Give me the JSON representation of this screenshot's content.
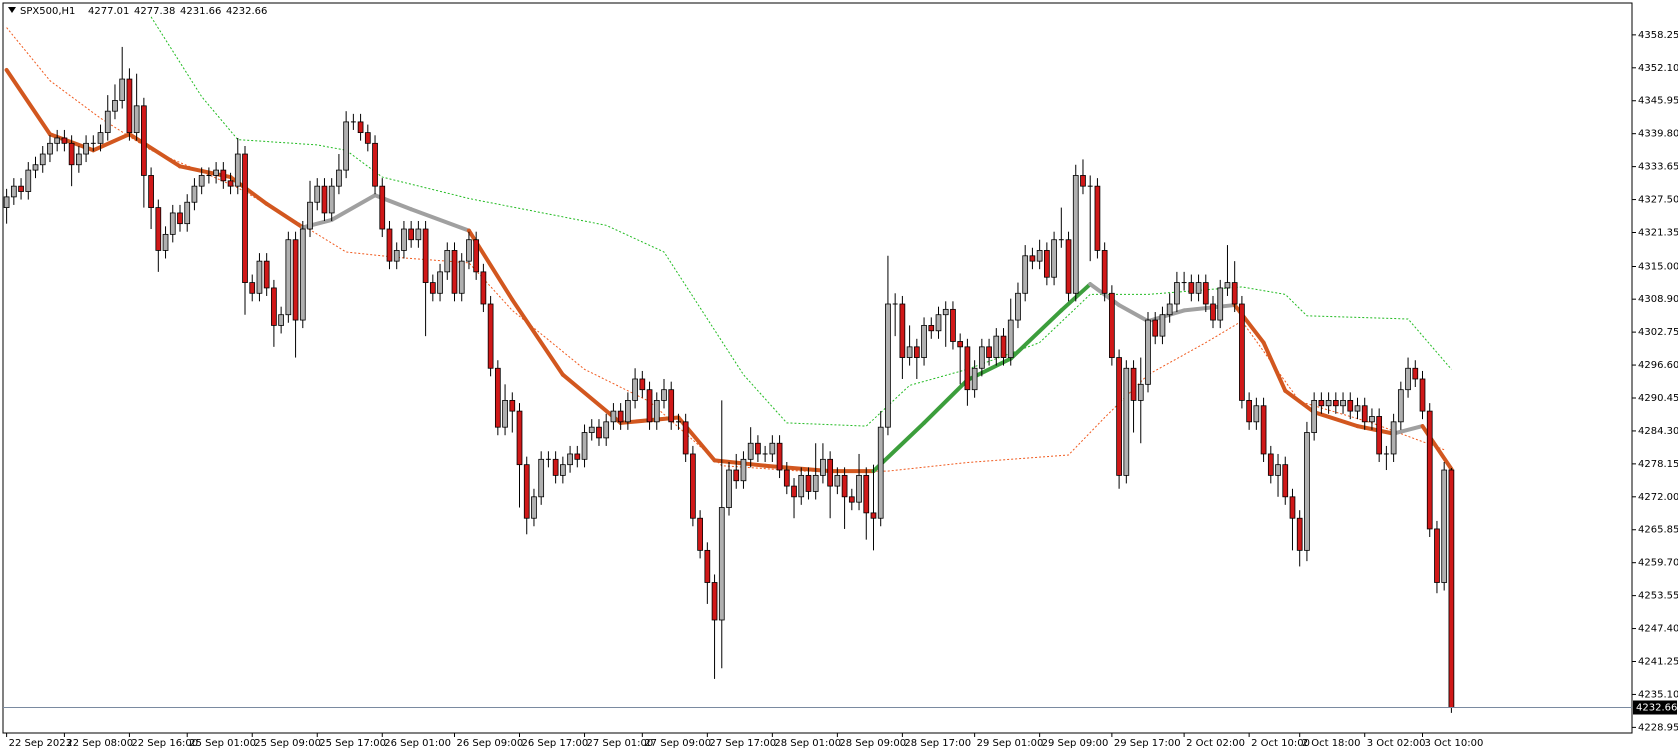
{
  "chart_data": {
    "type": "candlestick",
    "symbol": "SPX500,H1",
    "open": [
      4326,
      4328,
      4330,
      4329,
      4333,
      4334,
      4336,
      4338,
      4339,
      4338,
      4334,
      4336,
      4338,
      4338,
      4340,
      4344,
      4346,
      4350,
      4340,
      4345,
      4332,
      4326,
      4318,
      4321,
      4325,
      4323,
      4327,
      4330,
      4332,
      4332,
      4333,
      4331,
      4330,
      4336,
      4312,
      4310,
      4316,
      4311,
      4304,
      4306,
      4320,
      4305,
      4322,
      4327,
      4330,
      4325,
      4330,
      4333,
      4342,
      4342,
      4340,
      4338,
      4330,
      4322,
      4316,
      4318,
      4322,
      4320,
      4322,
      4312,
      4310,
      4314,
      4318,
      4310,
      4316,
      4320,
      4314,
      4308,
      4296,
      4285,
      4290,
      4288,
      4278,
      4268,
      4272,
      4279,
      4279,
      4276,
      4278,
      4280,
      4279,
      4284,
      4285,
      4283,
      4286,
      4288,
      4286,
      4290,
      4294,
      4292,
      4286,
      4290,
      4292,
      4286,
      4286,
      4280,
      4268,
      4262,
      4256,
      4249,
      4270,
      4277,
      4275,
      4279,
      4282,
      4280,
      4280,
      4282,
      4277,
      4274,
      4272,
      4276,
      4273,
      4276,
      4279,
      4274,
      4276,
      4272,
      4271,
      4276,
      4269,
      4268,
      4285,
      4308,
      4308,
      4298,
      4300,
      4298,
      4304,
      4303,
      4306,
      4307,
      4301,
      4300,
      4292,
      4296,
      4300,
      4298,
      4302,
      4298,
      4305,
      4310,
      4317,
      4316,
      4318,
      4313,
      4320,
      4320,
      4310,
      4332,
      4330,
      4330,
      4318,
      4310,
      4298,
      4276,
      4296,
      4290,
      4293,
      4305,
      4302,
      4306,
      4308,
      4312,
      4312,
      4310,
      4312,
      4308,
      4305,
      4311,
      4312,
      4308,
      4290,
      4286,
      4289,
      4280,
      4276,
      4278,
      4272,
      4268,
      4262,
      4284,
      4290,
      4289,
      4290,
      4289,
      4290,
      4288,
      4289,
      4286,
      4287,
      4280,
      4280,
      4286,
      4292,
      4296,
      4294,
      4288,
      4266,
      4256,
      4277.01
    ],
    "high": [
      4329.5,
      4331.5,
      4331.5,
      4334.5,
      4335.5,
      4337.5,
      4339.5,
      4340.5,
      4340.5,
      4339.5,
      4337.5,
      4339.5,
      4339.5,
      4341.5,
      4347,
      4349,
      4356,
      4352,
      4351,
      4346.5,
      4333.5,
      4327.5,
      4322.5,
      4326.5,
      4326.5,
      4328.5,
      4331.5,
      4333.5,
      4333.5,
      4334.5,
      4334.5,
      4332.5,
      4339,
      4337.5,
      4313.5,
      4317.5,
      4317.5,
      4312.5,
      4307.5,
      4321.5,
      4321.5,
      4323.5,
      4331,
      4331.5,
      4331.5,
      4331.5,
      4336,
      4344,
      4343.5,
      4343.5,
      4341.5,
      4339.5,
      4331.5,
      4323.5,
      4319.5,
      4323.5,
      4323.5,
      4323.5,
      4323.5,
      4313.5,
      4315.5,
      4319.5,
      4319.5,
      4317.5,
      4321.5,
      4321.5,
      4315.5,
      4309.5,
      4297.5,
      4293,
      4291.5,
      4289.5,
      4279.5,
      4273.5,
      4280.5,
      4280.5,
      4280.5,
      4279.5,
      4281.5,
      4281.5,
      4285.5,
      4286.5,
      4286.5,
      4287.5,
      4289.5,
      4289.5,
      4291.5,
      4296,
      4295.5,
      4293.5,
      4291.5,
      4294,
      4293.5,
      4287.5,
      4287.5,
      4281.5,
      4269.5,
      4263.5,
      4257.5,
      4290,
      4278.5,
      4280,
      4280.5,
      4285,
      4283.5,
      4281.5,
      4283.5,
      4283.5,
      4278.5,
      4275.5,
      4277.5,
      4277.5,
      4282,
      4282,
      4280.5,
      4277.5,
      4277.5,
      4273.5,
      4280,
      4277.5,
      4278,
      4288,
      4317,
      4310,
      4309.5,
      4304,
      4301.5,
      4305.5,
      4305.5,
      4307.5,
      4308.5,
      4308.5,
      4302.5,
      4301.5,
      4297.5,
      4301.5,
      4301.5,
      4303.5,
      4303.5,
      4309,
      4312,
      4319,
      4318.5,
      4320,
      4319.5,
      4321.5,
      4326,
      4321.5,
      4334,
      4335,
      4332,
      4331.5,
      4319.5,
      4311.5,
      4299.5,
      4297.5,
      4297.5,
      4298,
      4306.5,
      4306.5,
      4307.5,
      4310,
      4314,
      4314,
      4313.5,
      4313.5,
      4313.5,
      4309.5,
      4312.5,
      4319,
      4316,
      4309.5,
      4291.5,
      4290.5,
      4290.5,
      4281.5,
      4280,
      4279.5,
      4273.5,
      4269.5,
      4286,
      4291.5,
      4291.5,
      4291.5,
      4291.5,
      4291.5,
      4291.5,
      4290.5,
      4290.5,
      4288.5,
      4288.5,
      4281.5,
      4287.5,
      4293.5,
      4298,
      4297.5,
      4295.5,
      4289.5,
      4267.5,
      4278.5,
      4277.38
    ],
    "low": [
      4323,
      4326.5,
      4327.5,
      4327.5,
      4331.5,
      4332.5,
      4334.5,
      4336.5,
      4336.5,
      4330,
      4332.5,
      4334.5,
      4336.5,
      4336.5,
      4338.5,
      4342.5,
      4344.5,
      4338.5,
      4338.5,
      4326,
      4322,
      4314,
      4316.5,
      4319.5,
      4321.5,
      4321.5,
      4325.5,
      4328.5,
      4330.5,
      4330.5,
      4329.5,
      4328.5,
      4328.5,
      4306,
      4308.5,
      4308.5,
      4309.5,
      4300,
      4302.5,
      4304.5,
      4298,
      4303.5,
      4320.5,
      4325.5,
      4323.5,
      4323.5,
      4328.5,
      4331.5,
      4340.5,
      4338.5,
      4336.5,
      4328.5,
      4320.5,
      4314.5,
      4314.5,
      4316.5,
      4318.5,
      4318.5,
      4302,
      4308.5,
      4308.5,
      4312.5,
      4308.5,
      4308.5,
      4314.5,
      4312.5,
      4306.5,
      4294.5,
      4283.5,
      4283.5,
      4284,
      4270,
      4265,
      4266.5,
      4270.5,
      4277.5,
      4274.5,
      4274.5,
      4276.5,
      4277.5,
      4277.5,
      4282.5,
      4281.5,
      4281.5,
      4284.5,
      4284.5,
      4284.5,
      4288.5,
      4290.5,
      4284.5,
      4284.5,
      4288.5,
      4284.5,
      4284.5,
      4278.5,
      4266.5,
      4260.5,
      4252,
      4238,
      4240,
      4268.5,
      4273.5,
      4273.5,
      4277.5,
      4278.5,
      4278.5,
      4278.5,
      4275.5,
      4272.5,
      4268,
      4270.5,
      4271.5,
      4271.5,
      4274.5,
      4268,
      4272.5,
      4266,
      4269.5,
      4269.5,
      4264,
      4262,
      4266.5,
      4283.5,
      4302,
      4294,
      4296.5,
      4294,
      4296.5,
      4301.5,
      4301.5,
      4300,
      4299.5,
      4293,
      4289,
      4290.5,
      4294.5,
      4296.5,
      4296.5,
      4296.5,
      4296.5,
      4303.5,
      4308.5,
      4314.5,
      4314.5,
      4311.5,
      4311.5,
      4318.5,
      4308.5,
      4308.5,
      4328.5,
      4316,
      4316.5,
      4308.5,
      4296.5,
      4273.5,
      4274.5,
      4284,
      4282,
      4291.5,
      4300.5,
      4300.5,
      4304.5,
      4306.5,
      4310.5,
      4308.5,
      4308.5,
      4306.5,
      4303.5,
      4303.5,
      4309.5,
      4306.5,
      4288.5,
      4284.5,
      4284.5,
      4278.5,
      4274.5,
      4272,
      4270.5,
      4262,
      4259,
      4260,
      4282.5,
      4287.5,
      4287.5,
      4287.5,
      4287.5,
      4286.5,
      4286.5,
      4284.5,
      4284.5,
      4278.5,
      4277,
      4278.5,
      4284.5,
      4290.5,
      4292.5,
      4286.5,
      4264.5,
      4254,
      4254.5,
      4231.66
    ],
    "close": [
      4328,
      4330,
      4329,
      4333,
      4334,
      4336,
      4338,
      4339,
      4338,
      4334,
      4336,
      4338,
      4338,
      4340,
      4344,
      4346,
      4350,
      4340,
      4345,
      4332,
      4326,
      4318,
      4321,
      4325,
      4323,
      4327,
      4330,
      4332,
      4332,
      4333,
      4331,
      4330,
      4336,
      4312,
      4310,
      4316,
      4311,
      4304,
      4306,
      4320,
      4305,
      4322,
      4327,
      4330,
      4325,
      4330,
      4333,
      4342,
      4342,
      4340,
      4338,
      4330,
      4322,
      4316,
      4318,
      4322,
      4320,
      4322,
      4312,
      4310,
      4314,
      4318,
      4310,
      4316,
      4320,
      4314,
      4308,
      4296,
      4285,
      4290,
      4288,
      4278,
      4268,
      4272,
      4279,
      4279,
      4276,
      4278,
      4280,
      4279,
      4284,
      4285,
      4283,
      4286,
      4288,
      4286,
      4290,
      4294,
      4292,
      4286,
      4290,
      4292,
      4286,
      4286,
      4280,
      4268,
      4262,
      4256,
      4249,
      4270,
      4277,
      4275,
      4279,
      4282,
      4280,
      4280,
      4282,
      4277,
      4274,
      4272,
      4276,
      4273,
      4276,
      4279,
      4274,
      4276,
      4272,
      4271,
      4276,
      4269,
      4268,
      4285,
      4308,
      4308,
      4298,
      4300,
      4298,
      4304,
      4303,
      4306,
      4307,
      4301,
      4300,
      4292,
      4296,
      4300,
      4298,
      4302,
      4298,
      4305,
      4310,
      4317,
      4316,
      4318,
      4313,
      4320,
      4320,
      4310,
      4332,
      4330,
      4330,
      4318,
      4310,
      4298,
      4276,
      4296,
      4290,
      4293,
      4305,
      4302,
      4306,
      4308,
      4312,
      4312,
      4310,
      4312,
      4308,
      4305,
      4311,
      4312,
      4308,
      4290,
      4286,
      4289,
      4280,
      4276,
      4278,
      4272,
      4268,
      4262,
      4284,
      4290,
      4289,
      4290,
      4289,
      4290,
      4288,
      4289,
      4286,
      4287,
      4280,
      4280,
      4286,
      4292,
      4296,
      4294,
      4288,
      4266,
      4256,
      4277,
      4232.66
    ],
    "bull_color": "#b0b0b0",
    "bear_color": "#d01818",
    "ma": {
      "x": [
        0,
        6,
        12,
        17,
        24,
        31,
        36,
        41,
        45,
        51,
        56,
        64,
        70,
        77,
        85,
        93,
        98,
        105,
        114,
        120,
        127,
        133,
        139,
        146,
        150,
        154,
        158,
        163,
        170,
        174,
        177,
        181,
        187,
        192,
        196,
        200
      ],
      "values": [
        4351.7,
        4339.7,
        4336.7,
        4339.7,
        4333.7,
        4331.7,
        4326.7,
        4322.3,
        4323.7,
        4328.3,
        4325.7,
        4321.7,
        4308.8,
        4294.8,
        4285.8,
        4286.8,
        4278.8,
        4277.8,
        4276.8,
        4276.8,
        4285.8,
        4293.8,
        4297.8,
        4306.8,
        4311.7,
        4307.8,
        4304.8,
        4306.8,
        4307.8,
        4300.8,
        4291.8,
        4287.8,
        4285.2,
        4283.8,
        4285.2,
        4277.2
      ],
      "colors": [
        "#d2571f",
        "#d2571f",
        "#d2571f",
        "#d2571f",
        "#d2571f",
        "#d2571f",
        "#d2571f",
        "#d2571f",
        "#a0a0a0",
        "#a0a0a0",
        "#a0a0a0",
        "#a0a0a0",
        "#d2571f",
        "#d2571f",
        "#d2571f",
        "#d2571f",
        "#d2571f",
        "#d2571f",
        "#d2571f",
        "#d2571f",
        "#3c9e3c",
        "#3c9e3c",
        "#3c9e3c",
        "#3c9e3c",
        "#3c9e3c",
        "#a0a0a0",
        "#a0a0a0",
        "#a0a0a0",
        "#a0a0a0",
        "#d2571f",
        "#d2571f",
        "#d2571f",
        "#d2571f",
        "#d2571f",
        "#a0a0a0",
        "#d2571f"
      ]
    },
    "upper_band": {
      "color": "#22bb22",
      "x": [
        20,
        27,
        32,
        43,
        47,
        52,
        61,
        64,
        83,
        91,
        102,
        108,
        119,
        125,
        133,
        143,
        150,
        158,
        171,
        177,
        180,
        194,
        200
      ],
      "values": [
        4361.6,
        4346.7,
        4338.7,
        4337.7,
        4336.7,
        4331.7,
        4328.7,
        4327.7,
        4322.7,
        4317.7,
        4294.8,
        4285.8,
        4285.2,
        4292.8,
        4295.8,
        4300.8,
        4309.8,
        4309.8,
        4311.2,
        4309.8,
        4305.8,
        4305.2,
        4295.8
      ]
    },
    "lower_band": {
      "color": "#f05a1e",
      "x": [
        0,
        6,
        13,
        20,
        27,
        32,
        41,
        47,
        54,
        64,
        70,
        80,
        89,
        94,
        99,
        110,
        122,
        133,
        147,
        152,
        158,
        166,
        171,
        179,
        189,
        199
      ],
      "values": [
        4359.6,
        4349.7,
        4342.7,
        4336.7,
        4332.7,
        4329.7,
        4322.7,
        4317.7,
        4316.7,
        4315.7,
        4306.8,
        4295.8,
        4289.8,
        4283.8,
        4277.8,
        4276.8,
        4276.8,
        4278.4,
        4279.8,
        4286.8,
        4294.8,
        4300.8,
        4304.8,
        4289.8,
        4285.8,
        4280.8
      ]
    },
    "bid": 4232.66,
    "xlim": [
      -0.5,
      225
    ],
    "ylim": [
      4227.9,
      4364.2
    ],
    "yticks": [
      4358.25,
      {
        "value": 4352.1,
        "label": "4352.10"
      },
      4345.95,
      {
        "value": 4339.8,
        "label": "4339.80"
      },
      4333.65,
      {
        "value": 4327.5,
        "label": "4327.50"
      },
      4321.35,
      {
        "value": 4315,
        "label": "4315.00"
      },
      {
        "value": 4308.9,
        "label": "4308.90"
      },
      4302.75,
      {
        "value": 4296.6,
        "label": "4296.60"
      },
      4290.45,
      {
        "value": 4284.3,
        "label": "4284.30"
      },
      4278.15,
      {
        "value": 4272,
        "label": "4272.00"
      },
      4265.85,
      {
        "value": 4259.7,
        "label": "4259.70"
      },
      4253.55,
      {
        "value": 4247.4,
        "label": "4247.40"
      },
      4241.25,
      {
        "value": 4235.1,
        "label": "4235.10"
      },
      4228.95
    ],
    "xticks": [
      {
        "value": 0,
        "label": "22 Sep 2023"
      },
      {
        "value": 8,
        "label": "22 Sep 08:00"
      },
      {
        "value": 17,
        "label": "22 Sep 16:00"
      },
      {
        "value": 25,
        "label": "25 Sep 01:00"
      },
      {
        "value": 34,
        "label": "25 Sep 09:00"
      },
      {
        "value": 43,
        "label": "25 Sep 17:00"
      },
      {
        "value": 52,
        "label": "26 Sep 01:00"
      },
      {
        "value": 62,
        "label": "26 Sep 09:00"
      },
      {
        "value": 71,
        "label": "26 Sep 17:00"
      },
      {
        "value": 80,
        "label": "27 Sep 01:00"
      },
      {
        "value": 88,
        "label": "27 Sep 09:00"
      },
      {
        "value": 97,
        "label": "27 Sep 17:00"
      },
      {
        "value": 106,
        "label": "28 Sep 01:00"
      },
      {
        "value": 115,
        "label": "28 Sep 09:00"
      },
      {
        "value": 124,
        "label": "28 Sep 17:00"
      },
      {
        "value": 134,
        "label": "29 Sep 01:00"
      },
      {
        "value": 143,
        "label": "29 Sep 09:00"
      },
      {
        "value": 153,
        "label": "29 Sep 17:00"
      },
      {
        "value": 163,
        "label": "2 Oct 02:00"
      },
      {
        "value": 172,
        "label": "2 Oct 10:00"
      },
      {
        "value": 179,
        "label": "2 Oct 18:00"
      },
      {
        "value": 188,
        "label": "3 Oct 02:00"
      },
      {
        "value": 196,
        "label": "3 Oct 10:00"
      }
    ]
  }
}
